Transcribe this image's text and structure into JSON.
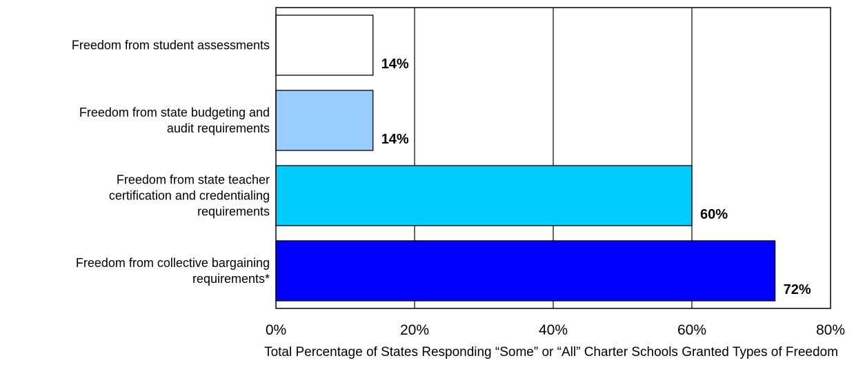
{
  "chart_data": {
    "type": "bar",
    "orientation": "horizontal",
    "categories": [
      [
        "Freedom from student assessments"
      ],
      [
        "Freedom from state budgeting and",
        "audit requirements"
      ],
      [
        "Freedom from state teacher",
        "certification and credentialing",
        "requirements"
      ],
      [
        "Freedom from collective bargaining",
        "requirements*"
      ]
    ],
    "values": [
      14,
      14,
      60,
      72
    ],
    "value_labels": [
      "14%",
      "14%",
      "60%",
      "72%"
    ],
    "bar_colors": [
      "#FFFFFF",
      "#99CCFF",
      "#00CCFF",
      "#0000FF"
    ],
    "xlim": [
      0,
      80
    ],
    "xticks": [
      0,
      20,
      40,
      60,
      80
    ],
    "xtick_labels": [
      "0%",
      "20%",
      "40%",
      "60%",
      "80%"
    ],
    "xlabel": "Total Percentage of States Responding “Some” or “All” Charter Schools Granted Types of Freedom",
    "ylabel": "",
    "title": "",
    "grid": "vertical",
    "legend": "none"
  }
}
